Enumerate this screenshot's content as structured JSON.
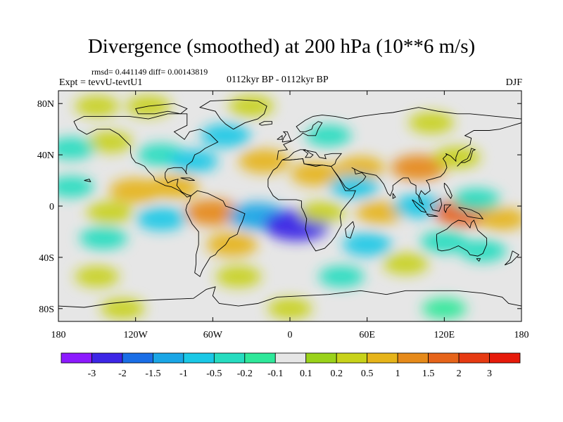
{
  "header": {
    "title": "Divergence (smoothed) at 200 hPa (10**6 m/s)",
    "stats": "rmsd= 0.441149 diff= 0.00143819",
    "experiment": "Expt = tevvU-tevtU1",
    "period": "0112kyr BP - 0112kyr BP",
    "season": "DJF"
  },
  "chart_data": {
    "type": "heatmap",
    "title": "Divergence (smoothed) at 200 hPa (10**6 m/s)",
    "xlabel": "",
    "ylabel": "",
    "xlim": [
      -180,
      180
    ],
    "ylim": [
      -90,
      90
    ],
    "x_ticks": [
      {
        "value": -180,
        "label": "180"
      },
      {
        "value": -120,
        "label": "120W"
      },
      {
        "value": -60,
        "label": "60W"
      },
      {
        "value": 0,
        "label": "0"
      },
      {
        "value": 60,
        "label": "60E"
      },
      {
        "value": 120,
        "label": "120E"
      },
      {
        "value": 180,
        "label": "180"
      }
    ],
    "y_ticks": [
      {
        "value": 80,
        "label": "80N"
      },
      {
        "value": 40,
        "label": "40N"
      },
      {
        "value": 0,
        "label": "0"
      },
      {
        "value": -40,
        "label": "40S"
      },
      {
        "value": -80,
        "label": "80S"
      }
    ],
    "colorbar": {
      "labels": [
        "-3",
        "-2",
        "-1.5",
        "-1",
        "-0.5",
        "-0.2",
        "-0.1",
        "0.1",
        "0.2",
        "0.5",
        "1",
        "1.5",
        "2",
        "3"
      ],
      "colors": [
        "#8c1aff",
        "#3d26e6",
        "#1a6ee6",
        "#1aa6e6",
        "#1ac8e6",
        "#26dcc0",
        "#2ee89a",
        "#e6e6e6",
        "#9ad21a",
        "#c8d21a",
        "#e6b41a",
        "#e68a1a",
        "#e6641a",
        "#e63a12",
        "#e61a0a"
      ]
    },
    "background_value_color": "#e6e6e6",
    "field_anomalies": [
      {
        "lon": -140,
        "lat": 50,
        "value": 0.3
      },
      {
        "lon": -100,
        "lat": 40,
        "value": -0.5
      },
      {
        "lon": -75,
        "lat": 35,
        "value": -0.6
      },
      {
        "lon": -50,
        "lat": 55,
        "value": -0.7
      },
      {
        "lon": -30,
        "lat": 78,
        "value": 0.3
      },
      {
        "lon": -110,
        "lat": 78,
        "value": 0.25
      },
      {
        "lon": -150,
        "lat": 78,
        "value": 0.2
      },
      {
        "lon": -120,
        "lat": 12,
        "value": 0.9
      },
      {
        "lon": -90,
        "lat": 15,
        "value": 0.7
      },
      {
        "lon": -140,
        "lat": -5,
        "value": 0.4
      },
      {
        "lon": -170,
        "lat": 15,
        "value": -0.3
      },
      {
        "lon": -60,
        "lat": -5,
        "value": 1.2
      },
      {
        "lon": -45,
        "lat": -30,
        "value": 0.8
      },
      {
        "lon": -25,
        "lat": -8,
        "value": -1.4
      },
      {
        "lon": 5,
        "lat": -15,
        "value": -2.2
      },
      {
        "lon": 25,
        "lat": -5,
        "value": 0.3
      },
      {
        "lon": -100,
        "lat": -10,
        "value": -0.7
      },
      {
        "lon": -145,
        "lat": -25,
        "value": -0.5
      },
      {
        "lon": -20,
        "lat": 35,
        "value": 0.8
      },
      {
        "lon": 20,
        "lat": 25,
        "value": 0.7
      },
      {
        "lon": 55,
        "lat": 30,
        "value": 0.5
      },
      {
        "lon": 50,
        "lat": 15,
        "value": -0.6
      },
      {
        "lon": 100,
        "lat": 30,
        "value": 1.1
      },
      {
        "lon": 130,
        "lat": 38,
        "value": 0.4
      },
      {
        "lon": 30,
        "lat": 55,
        "value": -0.3
      },
      {
        "lon": 110,
        "lat": 65,
        "value": 0.3
      },
      {
        "lon": 70,
        "lat": -5,
        "value": 0.5
      },
      {
        "lon": 100,
        "lat": 0,
        "value": -0.7
      },
      {
        "lon": 135,
        "lat": -5,
        "value": 1.5
      },
      {
        "lon": 145,
        "lat": 5,
        "value": -0.5
      },
      {
        "lon": 165,
        "lat": -10,
        "value": 0.5
      },
      {
        "lon": 60,
        "lat": -30,
        "value": -0.6
      },
      {
        "lon": 120,
        "lat": -28,
        "value": -0.5
      },
      {
        "lon": 90,
        "lat": -45,
        "value": 0.3
      },
      {
        "lon": 150,
        "lat": -35,
        "value": -0.4
      },
      {
        "lon": -150,
        "lat": -55,
        "value": 0.2
      },
      {
        "lon": -40,
        "lat": -55,
        "value": 0.3
      },
      {
        "lon": 40,
        "lat": -55,
        "value": -0.3
      },
      {
        "lon": 0,
        "lat": -80,
        "value": 0.2
      },
      {
        "lon": -130,
        "lat": -80,
        "value": 0.2
      },
      {
        "lon": 120,
        "lat": -80,
        "value": -0.2
      },
      {
        "lon": -170,
        "lat": 45,
        "value": -0.4
      }
    ]
  }
}
